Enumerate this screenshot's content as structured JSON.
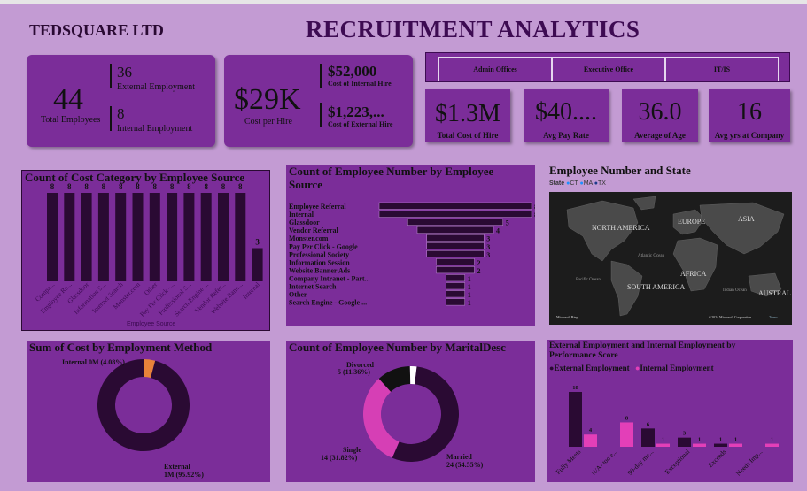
{
  "company": "TEDSQUARE LTD",
  "title": "RECRUITMENT ANALYTICS",
  "kpi_emp": {
    "total_value": "44",
    "total_label": "Total Employees",
    "ext_value": "36",
    "ext_label": "External Employment",
    "int_value": "8",
    "int_label": "Internal Employment"
  },
  "kpi_cost": {
    "value": "$29K",
    "label": "Cost per Hire",
    "int_value": "$52,000",
    "int_label": "Cost of Internal Hire",
    "ext_value": "$1,223,...",
    "ext_label": "Cost of External Hire"
  },
  "slicer": [
    "Admin Offices",
    "Executive Office",
    "IT/IS"
  ],
  "cards": [
    {
      "value": "$1.3M",
      "label": "Total Cost of Hire"
    },
    {
      "value": "$40....",
      "label": "Avg Pay Rate"
    },
    {
      "value": "36.0",
      "label": "Average of Age"
    },
    {
      "value": "16",
      "label": "Avg yrs at Company"
    }
  ],
  "chart_cost_cat": {
    "title": "Count of Cost Category by Employee Source",
    "xlabel": "Employee Source"
  },
  "chart_funnel": {
    "title1": "Count of Employee Number by Employee",
    "title2": "Source"
  },
  "map": {
    "title": "Employee Number and State",
    "legend_label": "State",
    "legend": [
      "CT",
      "MA",
      "TX"
    ],
    "labels": [
      "NORTH AMERICA",
      "EUROPE",
      "ASIA",
      "AFRICA",
      "SOUTH AMERICA",
      "AUSTRAL",
      "Atlantic Ocean",
      "Pacific Ocean",
      "Indian Ocean"
    ],
    "credit": "Microsoft Bing",
    "copyright": "©2024 Microsoft Corporation",
    "terms": "Terms"
  },
  "chart_method": {
    "title": "Sum of Cost by Employment Method",
    "label_int": "Internal 0M (4.08%)",
    "label_ext1": "External",
    "label_ext2": "1M (95.92%)"
  },
  "chart_marital": {
    "title": "Count of Employee Number by MaritalDesc",
    "div1": "Divorced",
    "div2": "5 (11.36%)",
    "single1": "Single",
    "single2": "14 (31.82%)",
    "mar1": "Married",
    "mar2": "24 (54.55%)"
  },
  "chart_perf": {
    "title1": "External Employment and Internal Employment by",
    "title2": "Performance Score",
    "legend": [
      "External Employment",
      "Internal Employment"
    ]
  },
  "chart_data": [
    {
      "type": "bar",
      "title": "Count of Cost Category by Employee Source",
      "xlabel": "Employee Source",
      "ylabel": "",
      "categories": [
        "Compa...",
        "Employee Re...",
        "Glassdoor",
        "Information S...",
        "Internet Search",
        "Monster.com",
        "Other",
        "Pay Per Click -...",
        "Professional S...",
        "Search Engine ...",
        "Vendor Refer...",
        "Website Bann...",
        "Internal"
      ],
      "values": [
        8,
        8,
        8,
        8,
        8,
        8,
        8,
        8,
        8,
        8,
        8,
        8,
        3
      ],
      "ylim": [
        0,
        8
      ],
      "color": "#2a0a33"
    },
    {
      "type": "bar",
      "orientation": "horizontal",
      "title": "Count of Employee Number by Employee Source",
      "categories": [
        "Employee Referral",
        "Internal",
        "Glassdoor",
        "Vendor Referral",
        "Monster.com",
        "Pay Per Click - Google",
        "Professional Society",
        "Information Session",
        "Website Banner Ads",
        "Company Intranet - Part...",
        "Internet Search",
        "Other",
        "Search Engine - Google ..."
      ],
      "values": [
        8,
        8,
        5,
        4,
        3,
        3,
        3,
        2,
        2,
        1,
        1,
        1,
        1
      ],
      "xlim": [
        0,
        8
      ]
    },
    {
      "type": "pie",
      "title": "Sum of Cost by Employment Method",
      "categories": [
        "External",
        "Internal"
      ],
      "values": [
        95.92,
        4.08
      ],
      "value_labels": [
        "1M (95.92%)",
        "0M (4.08%)"
      ],
      "colors": [
        "#2a0a33",
        "#e8823a"
      ]
    },
    {
      "type": "pie",
      "title": "Count of Employee Number by MaritalDesc",
      "categories": [
        "Married",
        "Single",
        "Divorced",
        "Other"
      ],
      "values": [
        24,
        14,
        5,
        1
      ],
      "value_labels": [
        "24 (54.55%)",
        "14 (31.82%)",
        "5 (11.36%)",
        ""
      ],
      "colors": [
        "#2a0a33",
        "#d63fb5",
        "#111111",
        "#ffffff"
      ]
    },
    {
      "type": "bar",
      "title": "External Employment and Internal Employment by Performance Score",
      "categories": [
        "Fully Meets",
        "N/A- too e...",
        "90-day me...",
        "Exceptional",
        "Exceeds",
        "Needs Imp..."
      ],
      "series": [
        {
          "name": "External Employment",
          "values": [
            18,
            null,
            6,
            3,
            1,
            null
          ],
          "color": "#2a0a33"
        },
        {
          "name": "Internal Employment",
          "values": [
            4,
            8,
            1,
            1,
            1,
            1
          ],
          "color": "#e33fb8"
        }
      ],
      "ylim": [
        0,
        18
      ]
    }
  ]
}
